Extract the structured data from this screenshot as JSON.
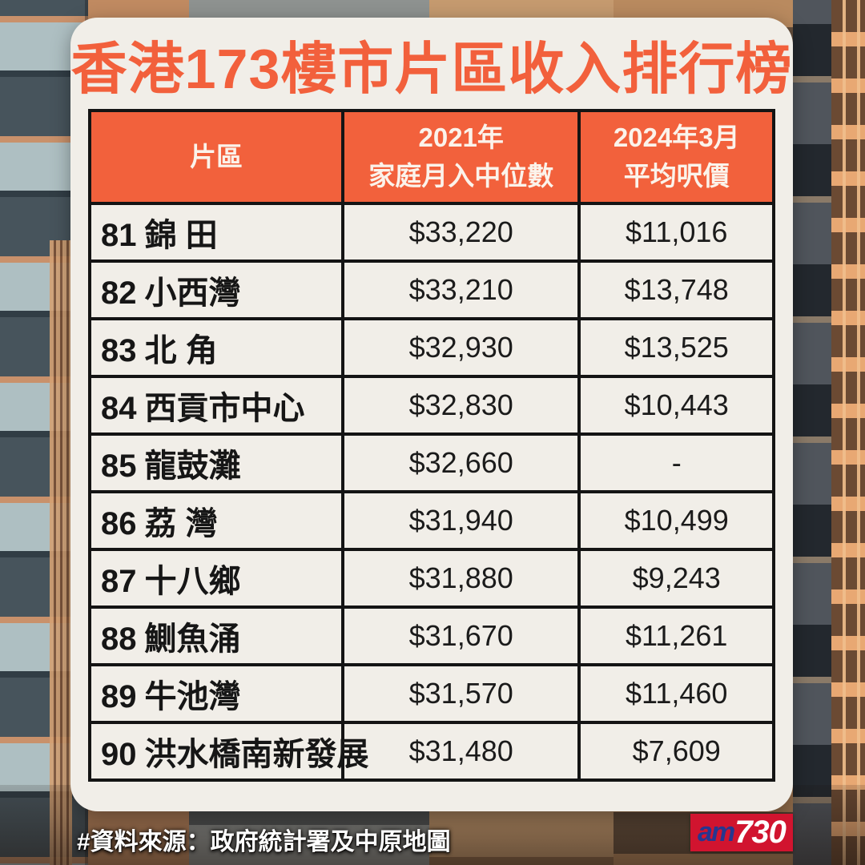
{
  "page": {
    "title": "香港173樓市片區收入排行榜"
  },
  "table": {
    "columns": [
      {
        "line1": "片區",
        "line2": ""
      },
      {
        "line1": "2021年",
        "line2": "家庭月入中位數"
      },
      {
        "line1": "2024年3月",
        "line2": "平均呎價"
      }
    ],
    "rows": [
      {
        "rank": "81",
        "district": "錦 田",
        "income": "$33,220",
        "price": "$11,016"
      },
      {
        "rank": "82",
        "district": "小西灣",
        "income": "$33,210",
        "price": "$13,748"
      },
      {
        "rank": "83",
        "district": "北 角",
        "income": "$32,930",
        "price": "$13,525"
      },
      {
        "rank": "84",
        "district": "西貢市中心",
        "income": "$32,830",
        "price": "$10,443"
      },
      {
        "rank": "85",
        "district": "龍鼓灘",
        "income": "$32,660",
        "price": "-"
      },
      {
        "rank": "86",
        "district": "荔 灣",
        "income": "$31,940",
        "price": "$10,499"
      },
      {
        "rank": "87",
        "district": "十八鄉",
        "income": "$31,880",
        "price": "$9,243"
      },
      {
        "rank": "88",
        "district": "鰂魚涌",
        "income": "$31,670",
        "price": "$11,261"
      },
      {
        "rank": "89",
        "district": "牛池灣",
        "income": "$31,570",
        "price": "$11,460"
      },
      {
        "rank": "90",
        "district": "洪水橋南新發展",
        "income": "$31,480",
        "price": "$7,609"
      }
    ]
  },
  "footer": {
    "source": "#資料來源：政府統計署及中原地圖"
  },
  "logo": {
    "part1": "am",
    "part2": "730"
  },
  "colors": {
    "accent_orange": "#F2613C",
    "card_bg": "#F1EEE8",
    "table_border": "#141414",
    "logo_red": "#D1142F",
    "logo_blue": "#26368F"
  },
  "chart_data": {
    "type": "table",
    "title": "香港173樓市片區收入排行榜",
    "columns": [
      "片區",
      "2021年家庭月入中位數",
      "2024年3月平均呎價"
    ],
    "rows": [
      [
        "81 錦 田",
        33220,
        11016
      ],
      [
        "82 小西灣",
        33210,
        13748
      ],
      [
        "83 北 角",
        32930,
        13525
      ],
      [
        "84 西貢市中心",
        32830,
        10443
      ],
      [
        "85 龍鼓灘",
        32660,
        null
      ],
      [
        "86 荔 灣",
        31940,
        10499
      ],
      [
        "87 十八鄉",
        31880,
        9243
      ],
      [
        "88 鰂魚涌",
        31670,
        11261
      ],
      [
        "89 牛池灣",
        31570,
        11460
      ],
      [
        "90 洪水橋南新發展",
        31480,
        7609
      ]
    ],
    "source": "#資料來源：政府統計署及中原地圖"
  }
}
